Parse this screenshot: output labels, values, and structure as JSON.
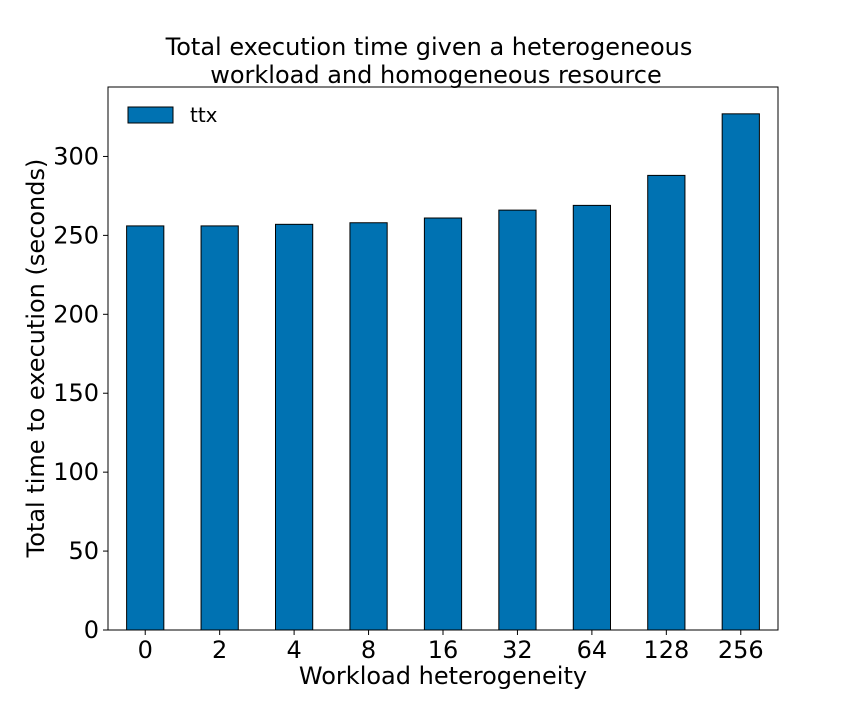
{
  "chart_data": {
    "type": "bar",
    "title_lines": [
      "Total execution time given a heterogeneous",
      "workload and homogeneous resource"
    ],
    "xlabel": "Workload heterogeneity",
    "ylabel": "Total time to execution (seconds)",
    "categories": [
      "0",
      "2",
      "4",
      "8",
      "16",
      "32",
      "64",
      "128",
      "256"
    ],
    "series": [
      {
        "name": "ttx",
        "values": [
          256,
          256,
          257,
          258,
          261,
          266,
          269,
          288,
          327
        ]
      }
    ],
    "ylim": [
      0,
      344
    ],
    "yticks": [
      0,
      50,
      100,
      150,
      200,
      250,
      300
    ],
    "bar_color": "#0072b2",
    "grid": false,
    "legend_position": "top-left"
  }
}
